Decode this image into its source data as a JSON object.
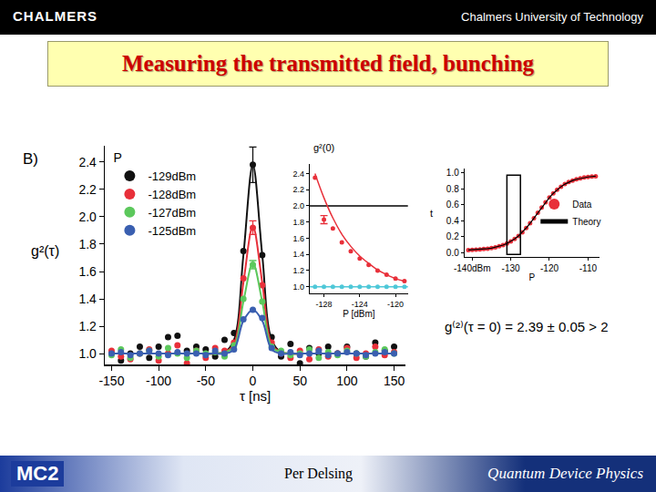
{
  "slide": {
    "header_left": "CHALMERS",
    "header_right": "Chalmers University of Technology",
    "title": "Measuring the transmitted field, bunching",
    "panel_label": "B)",
    "equation": "g⁽²⁾(τ = 0) = 2.39 ± 0.05 > 2",
    "footer_logo": "MC2",
    "footer_center": "Per Delsing",
    "footer_right": "Quantum Device Physics"
  },
  "chart_data": [
    {
      "type": "scatter",
      "x_label": "τ [ns]",
      "y_label": "g²(τ)",
      "legend_title": "P",
      "legend": "top-left",
      "grid": false,
      "x": [
        -150,
        -140,
        -130,
        -120,
        -110,
        -100,
        -90,
        -80,
        -70,
        -60,
        -50,
        -40,
        -30,
        -20,
        -10,
        0,
        10,
        20,
        30,
        40,
        50,
        60,
        70,
        80,
        90,
        100,
        110,
        120,
        130,
        140,
        150
      ],
      "xlim": [
        -157,
        162
      ],
      "xticks": [
        -150,
        -100,
        -50,
        0,
        50,
        100,
        150
      ],
      "ylim": [
        0.92,
        2.52
      ],
      "yticks": [
        {
          "value": 1,
          "label": "1.0"
        },
        1.2,
        1.4,
        1.6,
        1.8,
        {
          "value": 2,
          "label": "2.0"
        },
        2.2,
        2.4
      ],
      "series": [
        {
          "name": "-129dBm",
          "color": "#111111",
          "values": [
            1.0,
            0.95,
            1.0,
            1.05,
            0.97,
            1.05,
            1.12,
            1.13,
            1.02,
            1.05,
            1.03,
            0.98,
            1.1,
            1.15,
            1.75,
            2.38,
            1.72,
            1.12,
            0.98,
            1.07,
            0.93,
            1.04,
            1.0,
            1.05,
            1.0,
            1.05,
            1.0,
            0.98,
            1.08,
            1.02,
            1.05
          ],
          "fit": [
            1,
            1,
            1,
            1,
            1,
            1,
            1,
            1,
            1,
            1,
            1,
            1,
            1.01,
            1.1,
            1.72,
            2.38,
            1.72,
            1.1,
            1.01,
            1,
            1,
            1,
            1,
            1,
            1,
            1,
            1,
            1,
            1,
            1,
            1
          ],
          "errors": [
            null,
            null,
            null,
            null,
            null,
            null,
            null,
            null,
            null,
            null,
            null,
            null,
            null,
            null,
            null,
            0.13,
            null,
            null,
            null,
            null,
            null,
            null,
            null,
            null,
            null,
            null,
            null,
            null,
            null,
            null,
            null
          ]
        },
        {
          "name": "-128dBm",
          "color": "#e8303a",
          "values": [
            1.02,
            0.98,
            0.96,
            1.0,
            1.03,
            0.95,
            1.0,
            1.06,
            0.93,
            1.02,
            0.97,
            1.04,
            1.02,
            1.08,
            1.55,
            1.92,
            1.5,
            1.08,
            1.0,
            0.97,
            1.02,
            0.96,
            1.03,
            0.98,
            1.0,
            1.04,
            0.97,
            1.0,
            1.05,
            0.99,
            1.01
          ],
          "fit": [
            1,
            1,
            1,
            1,
            1,
            1,
            1,
            1,
            1,
            1,
            1,
            1,
            1.01,
            1.07,
            1.52,
            1.93,
            1.52,
            1.07,
            1.01,
            1,
            1,
            1,
            1,
            1,
            1,
            1,
            1,
            1,
            1,
            1,
            1
          ],
          "errors": [
            null,
            null,
            null,
            null,
            null,
            null,
            null,
            null,
            null,
            null,
            null,
            null,
            null,
            null,
            null,
            0.05,
            null,
            null,
            null,
            null,
            null,
            null,
            null,
            null,
            null,
            null,
            null,
            null,
            null,
            null,
            null
          ]
        },
        {
          "name": "-127dBm",
          "color": "#5cc85c",
          "values": [
            0.99,
            1.03,
            0.97,
            1.0,
            1.02,
            0.98,
            1.04,
            1.0,
            0.97,
            1.02,
            1.0,
            1.01,
            0.98,
            1.06,
            1.4,
            1.65,
            1.38,
            1.05,
            1.02,
            0.99,
            1.0,
            1.03,
            0.97,
            1.01,
            0.99,
            1.02,
            1.0,
            0.98,
            1.01,
            1.03,
            1.0
          ],
          "fit": [
            1,
            1,
            1,
            1,
            1,
            1,
            1,
            1,
            1,
            1,
            1,
            1,
            1.01,
            1.05,
            1.38,
            1.66,
            1.38,
            1.05,
            1.01,
            1,
            1,
            1,
            1,
            1,
            1,
            1,
            1,
            1,
            1,
            1,
            1
          ],
          "errors": [
            null,
            null,
            null,
            null,
            null,
            null,
            null,
            null,
            null,
            null,
            null,
            null,
            null,
            null,
            null,
            0.03,
            null,
            null,
            null,
            null,
            null,
            null,
            null,
            null,
            null,
            null,
            null,
            null,
            null,
            null,
            null
          ]
        },
        {
          "name": "-125dBm",
          "color": "#3a5fb0",
          "values": [
            1.0,
            1.01,
            0.99,
            1.0,
            1.02,
            1.0,
            0.99,
            1.01,
            1.0,
            1.0,
            0.99,
            1.02,
            1.0,
            1.03,
            1.25,
            1.32,
            1.26,
            1.04,
            1.0,
            1.01,
            0.99,
            1.0,
            1.02,
            0.99,
            1.0,
            1.01,
            1.0,
            0.99,
            1.0,
            1.01,
            1.0
          ],
          "fit": [
            1,
            1,
            1,
            1,
            1,
            1,
            1,
            1,
            1,
            1,
            1,
            1,
            1.0,
            1.03,
            1.24,
            1.32,
            1.24,
            1.03,
            1.0,
            1,
            1,
            1,
            1,
            1,
            1,
            1,
            1,
            1,
            1,
            1,
            1
          ]
        }
      ]
    },
    {
      "type": "scatter",
      "title": "g²(0)",
      "x_label": "P [dBm]",
      "grid": false,
      "x": [
        -129,
        -128,
        -127,
        -126,
        -125,
        -124,
        -123,
        -122,
        -121,
        -120,
        -119
      ],
      "xlim": [
        -129.6,
        -118.6
      ],
      "xticks": [
        -128,
        -124,
        -120
      ],
      "ylim": [
        0.92,
        2.52
      ],
      "yticks": [
        {
          "value": 1,
          "label": "1.0"
        },
        1.2,
        1.4,
        1.6,
        1.8,
        {
          "value": 2,
          "label": "2.0"
        },
        2.2,
        2.4
      ],
      "series": [
        {
          "color": "#e8303a",
          "values": [
            2.35,
            1.83,
            1.72,
            1.55,
            1.44,
            1.35,
            1.27,
            1.2,
            1.15,
            1.1,
            1.07
          ],
          "fit": [
            2.4,
            2.1,
            1.85,
            1.65,
            1.5,
            1.38,
            1.29,
            1.21,
            1.15,
            1.1,
            1.07
          ],
          "errors": [
            null,
            0.05,
            null,
            null,
            null,
            null,
            null,
            null,
            null,
            null,
            null
          ]
        },
        {
          "color": "#4fc8d8",
          "values": [
            1,
            1,
            1,
            1,
            1,
            1,
            1,
            1,
            1,
            1,
            1
          ]
        }
      ],
      "reference_lines": [
        {
          "y": 2,
          "color": "#000000"
        },
        {
          "y": 1,
          "color": "#4fc8d8"
        }
      ]
    },
    {
      "type": "line",
      "x_label": "P",
      "y_label": "t",
      "legend": "right",
      "grid": false,
      "x": [
        -141,
        -140,
        -139,
        -138,
        -137,
        -136,
        -135,
        -134,
        -133,
        -132,
        -131,
        -130,
        -129,
        -128,
        -127,
        -126,
        -125,
        -124,
        -123,
        -122,
        -121,
        -120,
        -119,
        -118,
        -117,
        -116,
        -115,
        -114,
        -113,
        -112,
        -111,
        -110,
        -109,
        -108
      ],
      "xlim": [
        -142,
        -107
      ],
      "xticks": [
        {
          "value": -140,
          "label": "-140dBm"
        },
        -130,
        -120,
        -110
      ],
      "ylim": [
        -0.05,
        1.05
      ],
      "yticks": [
        {
          "value": 0,
          "label": "0.0"
        },
        0.2,
        0.4,
        0.6,
        0.8,
        {
          "value": 1,
          "label": "1.0"
        }
      ],
      "series": [
        {
          "name": "Data",
          "color": "#e8303a",
          "type": "scatter",
          "values": [
            0.035,
            0.037,
            0.04,
            0.043,
            0.047,
            0.052,
            0.059,
            0.069,
            0.081,
            0.097,
            0.116,
            0.142,
            0.174,
            0.211,
            0.257,
            0.31,
            0.369,
            0.433,
            0.5,
            0.567,
            0.631,
            0.69,
            0.743,
            0.789,
            0.826,
            0.858,
            0.884,
            0.903,
            0.919,
            0.931,
            0.941,
            0.947,
            0.953,
            0.957
          ]
        },
        {
          "name": "Theory",
          "color": "#000000",
          "type": "line",
          "values": [
            0.035,
            0.037,
            0.04,
            0.043,
            0.047,
            0.052,
            0.059,
            0.069,
            0.081,
            0.097,
            0.116,
            0.142,
            0.174,
            0.211,
            0.257,
            0.31,
            0.369,
            0.433,
            0.5,
            0.567,
            0.631,
            0.69,
            0.743,
            0.789,
            0.826,
            0.858,
            0.884,
            0.903,
            0.919,
            0.931,
            0.941,
            0.947,
            0.953,
            0.957
          ]
        }
      ],
      "highlight": {
        "x": [
          -131,
          -127.5
        ],
        "y": [
          -0.02,
          0.97
        ]
      }
    }
  ]
}
